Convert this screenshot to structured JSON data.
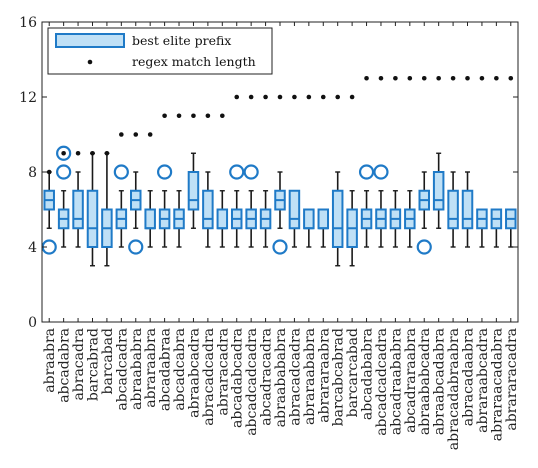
{
  "chart_data": {
    "type": "box",
    "title": "",
    "xlabel": "",
    "ylabel": "",
    "ylim": [
      0,
      16
    ],
    "yticks": [
      0,
      4,
      8,
      12,
      16
    ],
    "grid": false,
    "legend_position": "top-left",
    "colors": {
      "box_stroke": "#1f7ac7",
      "box_fill": "#bfe0f6",
      "dot": "#111111"
    },
    "legend": [
      "best elite prefix",
      "regex match length"
    ],
    "categories": [
      "abraabra",
      "abcadabra",
      "abracadra",
      "barcabrad",
      "barcabad",
      "abcadcadra",
      "abraababra",
      "abraraabra",
      "abcadabraa",
      "abcadcabra",
      "abraabcadra",
      "abracadcadra",
      "abraracadra",
      "abcadabcadra",
      "abcadcadcadra",
      "abcadracadra",
      "abraabababra",
      "abracadcadra",
      "abraraababra",
      "abrararaabra",
      "barcabcabrad",
      "barcarcabad",
      "abcadababra",
      "abcadcadcadra",
      "abcadraababra",
      "abcadraraabra",
      "abraababcadra",
      "abraabcadabra",
      "abracadabraabra",
      "abracadaabra",
      "abraraabcadra",
      "abraraacadabra",
      "abrararacadra"
    ],
    "series": [
      {
        "name": "best elite prefix",
        "kind": "box",
        "boxes": [
          {
            "whisker_low": 5,
            "q1": 6,
            "median": 6.5,
            "q3": 7,
            "whisker_high": 8,
            "outliers": [
              4
            ]
          },
          {
            "whisker_low": 4,
            "q1": 5,
            "median": 5.5,
            "q3": 6,
            "whisker_high": 7,
            "outliers": [
              8,
              9
            ]
          },
          {
            "whisker_low": 4,
            "q1": 5,
            "median": 5.5,
            "q3": 7,
            "whisker_high": 8,
            "outliers": []
          },
          {
            "whisker_low": 3,
            "q1": 4,
            "median": 5,
            "q3": 7,
            "whisker_high": 9,
            "outliers": []
          },
          {
            "whisker_low": 3,
            "q1": 4,
            "median": 5,
            "q3": 6,
            "whisker_high": 9,
            "outliers": []
          },
          {
            "whisker_low": 4,
            "q1": 5,
            "median": 5.5,
            "q3": 6,
            "whisker_high": 7,
            "outliers": [
              8
            ]
          },
          {
            "whisker_low": 5,
            "q1": 6,
            "median": 6.5,
            "q3": 7,
            "whisker_high": 8,
            "outliers": [
              4
            ]
          },
          {
            "whisker_low": 4,
            "q1": 5,
            "median": 5,
            "q3": 6,
            "whisker_high": 7,
            "outliers": []
          },
          {
            "whisker_low": 4,
            "q1": 5,
            "median": 5.5,
            "q3": 6,
            "whisker_high": 7,
            "outliers": [
              8
            ]
          },
          {
            "whisker_low": 4,
            "q1": 5,
            "median": 5.5,
            "q3": 6,
            "whisker_high": 7,
            "outliers": []
          },
          {
            "whisker_low": 5,
            "q1": 6,
            "median": 6.5,
            "q3": 8,
            "whisker_high": 9,
            "outliers": []
          },
          {
            "whisker_low": 4,
            "q1": 5,
            "median": 5.5,
            "q3": 7,
            "whisker_high": 8,
            "outliers": []
          },
          {
            "whisker_low": 4,
            "q1": 5,
            "median": 5,
            "q3": 6,
            "whisker_high": 7,
            "outliers": []
          },
          {
            "whisker_low": 4,
            "q1": 5,
            "median": 5.5,
            "q3": 6,
            "whisker_high": 7,
            "outliers": [
              8
            ]
          },
          {
            "whisker_low": 4,
            "q1": 5,
            "median": 5.5,
            "q3": 6,
            "whisker_high": 7,
            "outliers": [
              8
            ]
          },
          {
            "whisker_low": 4,
            "q1": 5,
            "median": 5.5,
            "q3": 6,
            "whisker_high": 7,
            "outliers": []
          },
          {
            "whisker_low": 5,
            "q1": 6,
            "median": 6.5,
            "q3": 7,
            "whisker_high": 8,
            "outliers": [
              4
            ]
          },
          {
            "whisker_low": 4,
            "q1": 5,
            "median": 5.5,
            "q3": 7,
            "whisker_high": 7,
            "outliers": []
          },
          {
            "whisker_low": 4,
            "q1": 5,
            "median": 5,
            "q3": 6,
            "whisker_high": 6,
            "outliers": []
          },
          {
            "whisker_low": 4,
            "q1": 5,
            "median": 5,
            "q3": 6,
            "whisker_high": 6,
            "outliers": []
          },
          {
            "whisker_low": 3,
            "q1": 4,
            "median": 5,
            "q3": 7,
            "whisker_high": 8,
            "outliers": []
          },
          {
            "whisker_low": 3,
            "q1": 4,
            "median": 5,
            "q3": 6,
            "whisker_high": 7,
            "outliers": []
          },
          {
            "whisker_low": 4,
            "q1": 5,
            "median": 5.5,
            "q3": 6,
            "whisker_high": 7,
            "outliers": [
              8
            ]
          },
          {
            "whisker_low": 4,
            "q1": 5,
            "median": 5.5,
            "q3": 6,
            "whisker_high": 7,
            "outliers": [
              8
            ]
          },
          {
            "whisker_low": 4,
            "q1": 5,
            "median": 5.5,
            "q3": 6,
            "whisker_high": 7,
            "outliers": []
          },
          {
            "whisker_low": 4,
            "q1": 5,
            "median": 5.5,
            "q3": 6,
            "whisker_high": 7,
            "outliers": []
          },
          {
            "whisker_low": 5,
            "q1": 6,
            "median": 6.5,
            "q3": 7,
            "whisker_high": 8,
            "outliers": [
              4
            ]
          },
          {
            "whisker_low": 5,
            "q1": 6,
            "median": 6.5,
            "q3": 8,
            "whisker_high": 9,
            "outliers": []
          },
          {
            "whisker_low": 4,
            "q1": 5,
            "median": 5.5,
            "q3": 7,
            "whisker_high": 8,
            "outliers": []
          },
          {
            "whisker_low": 4,
            "q1": 5,
            "median": 5.5,
            "q3": 7,
            "whisker_high": 8,
            "outliers": []
          },
          {
            "whisker_low": 4,
            "q1": 5,
            "median": 5.5,
            "q3": 6,
            "whisker_high": 6,
            "outliers": []
          },
          {
            "whisker_low": 4,
            "q1": 5,
            "median": 5.5,
            "q3": 6,
            "whisker_high": 6,
            "outliers": []
          },
          {
            "whisker_low": 4,
            "q1": 5,
            "median": 5.5,
            "q3": 6,
            "whisker_high": 6,
            "outliers": []
          }
        ]
      },
      {
        "name": "regex match length",
        "kind": "scatter",
        "values": [
          8,
          9,
          9,
          9,
          9,
          10,
          10,
          10,
          11,
          11,
          11,
          11,
          11,
          12,
          12,
          12,
          12,
          12,
          12,
          12,
          12,
          12,
          13,
          13,
          13,
          13,
          13,
          13,
          13,
          13,
          13,
          13,
          13
        ]
      }
    ]
  }
}
